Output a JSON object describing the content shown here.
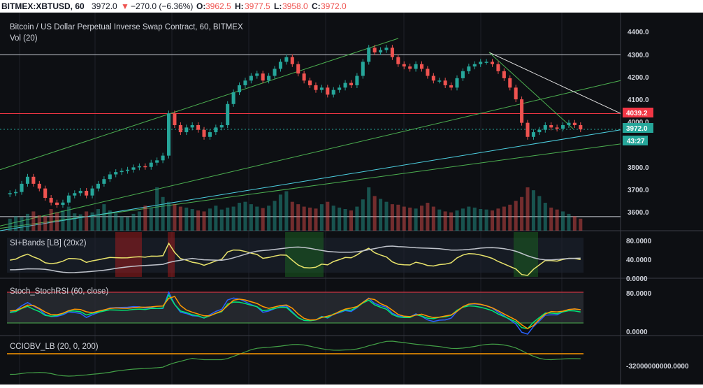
{
  "header": {
    "symbol": "BITMEX:XBTUSD, 60",
    "last": "3972.0",
    "change": "−270.0 (−6.36%)",
    "o_label": "O:",
    "o_value": "3962.5",
    "h_label": "H:",
    "h_value": "3977.5",
    "l_label": "L:",
    "l_value": "3958.0",
    "c_label": "C:",
    "c_value": "3972.0"
  },
  "main_pane": {
    "title": "Bitcoin / US Dollar Perpetual Inverse Swap Contract, 60, BITMEX",
    "vol_label": "Vol (20)",
    "price_ticks": [
      "4400.0",
      "4300.0",
      "4200.0",
      "4100.0",
      "4000.0",
      "3800.0",
      "3700.0",
      "3600.0"
    ],
    "red_level_badge": "4039.2",
    "last_price_badge": "3972.0",
    "countdown_badge": "43:27"
  },
  "panes": [
    {
      "title": "SI+Bands [LB] (20x2)",
      "ticks": [
        "80.0000",
        "40.0000",
        "0.0000"
      ]
    },
    {
      "title": "Stoch_StochRSI (60, close)",
      "ticks": [
        "80.0000",
        "0.0000"
      ]
    },
    {
      "title": "CCIOBV_LB (20, 0, 200)",
      "ticks": [
        "-32000000000.0000"
      ]
    }
  ],
  "colors": {
    "up": "#26a69a",
    "down": "#ef5350",
    "background": "#0d0f13",
    "trendline_green": "#4caf50",
    "trendline_cyan": "#4dd0e1",
    "red_level": "#f23645",
    "accent_yellow": "#ffeb3b"
  },
  "chart_data": {
    "type": "candlestick",
    "instrument": "BITMEX:XBTUSD",
    "timeframe": "60",
    "ylim": [
      3540,
      4440
    ],
    "last_close": 3972.0,
    "red_horizontal_level": 4039.2,
    "white_horizontal_levels": [
      4290,
      3600
    ],
    "close_series": [
      3700,
      3705,
      3740,
      3770,
      3740,
      3720,
      3680,
      3660,
      3650,
      3660,
      3690,
      3700,
      3710,
      3690,
      3720,
      3740,
      3760,
      3780,
      3790,
      3795,
      3800,
      3810,
      3815,
      3812,
      3830,
      3840,
      3860,
      4040,
      3990,
      3960,
      3980,
      3990,
      3970,
      3940,
      3960,
      3980,
      3990,
      4080,
      4130,
      4160,
      4180,
      4200,
      4210,
      4180,
      4200,
      4230,
      4260,
      4280,
      4250,
      4210,
      4180,
      4160,
      4140,
      4150,
      4120,
      4140,
      4150,
      4170,
      4160,
      4200,
      4260,
      4320,
      4300,
      4310,
      4320,
      4280,
      4250,
      4240,
      4230,
      4250,
      4230,
      4200,
      4180,
      4180,
      4160,
      4150,
      4190,
      4220,
      4240,
      4250,
      4260,
      4260,
      4250,
      4220,
      4190,
      4150,
      4100,
      4000,
      3940,
      3960,
      3970,
      3990,
      3980,
      3975,
      3990,
      4000,
      3990,
      3972
    ],
    "volume_scale_note": "relative",
    "volume_series": [
      25,
      30,
      28,
      35,
      40,
      32,
      30,
      45,
      38,
      42,
      50,
      36,
      34,
      40,
      38,
      45,
      55,
      42,
      36,
      30,
      28,
      35,
      40,
      52,
      48,
      90,
      70,
      60,
      55,
      50,
      48,
      45,
      42,
      40,
      46,
      52,
      44,
      48,
      50,
      58,
      60,
      55,
      50,
      47,
      52,
      62,
      75,
      82,
      60,
      55,
      50,
      48,
      46,
      55,
      60,
      52,
      48,
      45,
      42,
      50,
      65,
      90,
      72,
      66,
      60,
      55,
      54,
      50,
      48,
      46,
      52,
      58,
      50,
      44,
      40,
      38,
      42,
      46,
      50,
      48,
      45,
      44,
      42,
      46,
      50,
      54,
      62,
      70,
      90,
      84,
      72,
      58,
      48,
      44,
      40,
      35,
      30,
      25
    ],
    "pane_si_bands": {
      "ylim": [
        0,
        100
      ],
      "level_lines": [
        80,
        40
      ]
    },
    "pane_stoch_rsi": {
      "ylim": [
        0,
        100
      ],
      "level_lines": [
        80,
        20
      ]
    },
    "pane_cciobv": {
      "zero_line_label": "-32000000000.0000"
    }
  }
}
